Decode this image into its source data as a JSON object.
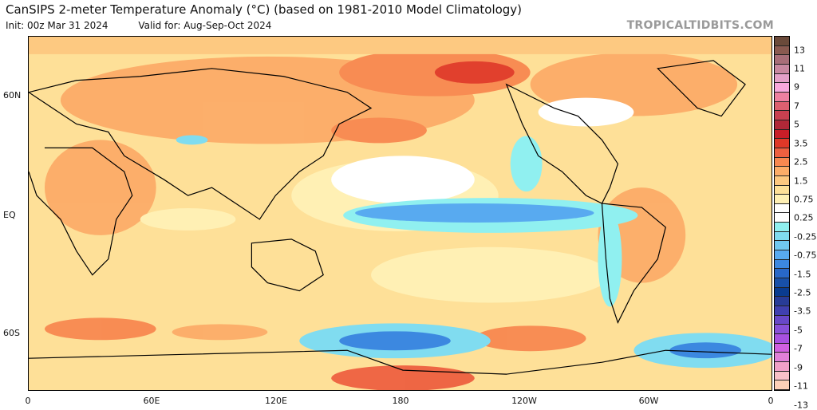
{
  "header": {
    "title": "CanSIPS 2-meter Temperature Anomaly (°C) (based on 1981-2010 Model Climatology)",
    "init": "Init: 00z Mar 31 2024",
    "valid": "Valid for: Aug-Sep-Oct 2024",
    "brand": "TROPICALTIDBITS.COM"
  },
  "axes": {
    "lat_labels": [
      "60N",
      "EQ",
      "60S"
    ],
    "lon_labels": [
      "0",
      "60E",
      "120E",
      "180",
      "120W",
      "60W",
      "0"
    ]
  },
  "colorbar": {
    "labels": [
      "13",
      "11",
      "9",
      "7",
      "5",
      "3.5",
      "2.5",
      "1.5",
      "0.75",
      "0.25",
      "-0.25",
      "-0.75",
      "-1.5",
      "-2.5",
      "-3.5",
      "-5",
      "-7",
      "-9",
      "-11",
      "-13"
    ],
    "colors": [
      "#6b4a3a",
      "#8a5a50",
      "#a86e78",
      "#c888a0",
      "#e4a0c8",
      "#f8a8dc",
      "#ee80a0",
      "#dc6070",
      "#c84050",
      "#b02838",
      "#c81e28",
      "#e03828",
      "#ee6040",
      "#f88850",
      "#fcac68",
      "#fdc880",
      "#fee098",
      "#fff0b4",
      "#ffffff",
      "#ffffff",
      "#90f0f0",
      "#80dcf0",
      "#70c8f0",
      "#58aaf0",
      "#3c88e0",
      "#2868c8",
      "#1850a8",
      "#0a3c90",
      "#283c98",
      "#4040b0",
      "#6848c8",
      "#8850d8",
      "#a850e0",
      "#d060e0",
      "#e080d8",
      "#f0a0c8",
      "#f8c0c8",
      "#fcd0b8"
    ]
  }
}
